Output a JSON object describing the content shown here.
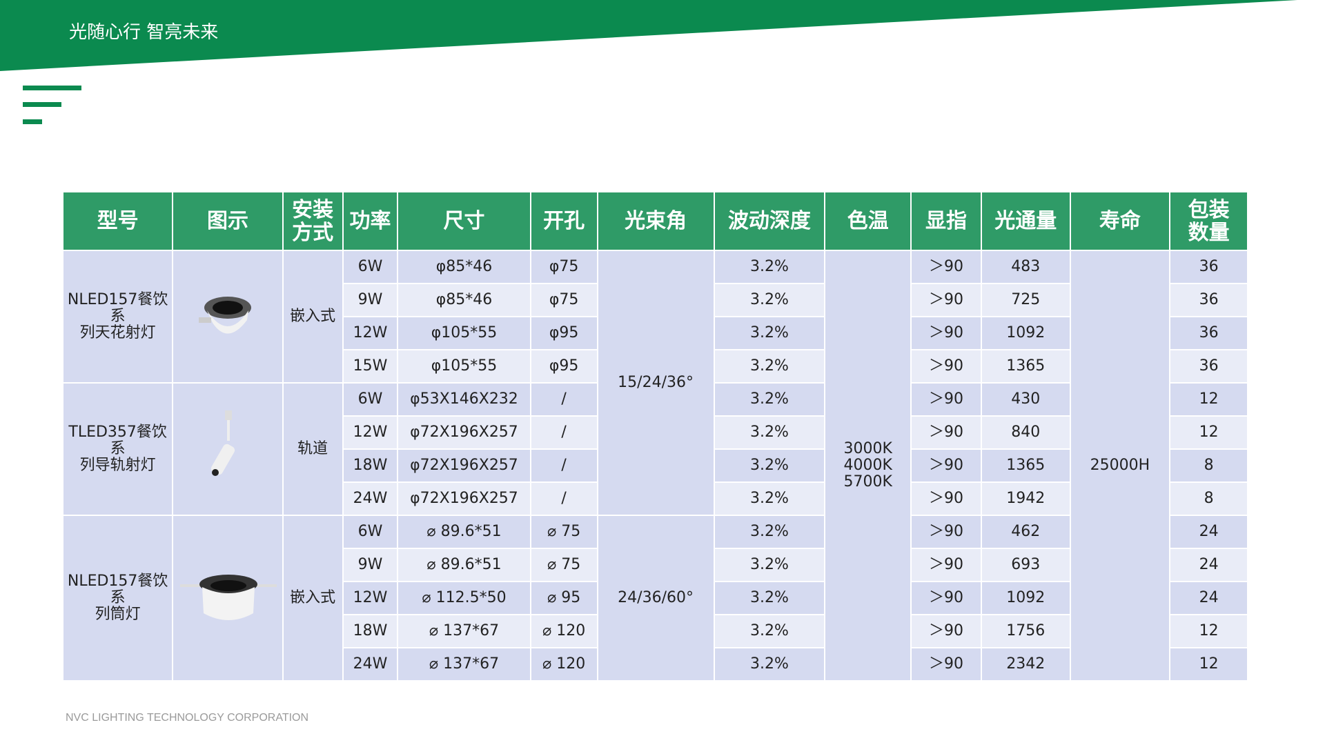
{
  "header": {
    "title": "光随心行  智亮未来"
  },
  "table": {
    "headers": [
      "型号",
      "图示",
      "安装\n方式",
      "功率",
      "尺寸",
      "开孔",
      "光束角",
      "波动深度",
      "色温",
      "显指",
      "光通量",
      "寿命",
      "包装\n数量"
    ],
    "beam_angles": [
      "15/24/36°",
      "24/36/60°"
    ],
    "color_temp": "3000K\n4000K\n5700K",
    "lifetime": "25000H",
    "groups": [
      {
        "model": "NLED157餐饮系\n列天花射灯",
        "install": "嵌入式",
        "rows": [
          [
            "6W",
            "φ85*46",
            "φ75",
            "3.2%",
            "＞90",
            "483",
            "36"
          ],
          [
            "9W",
            "φ85*46",
            "φ75",
            "3.2%",
            "＞90",
            "725",
            "36"
          ],
          [
            "12W",
            "φ105*55",
            "φ95",
            "3.2%",
            "＞90",
            "1092",
            "36"
          ],
          [
            "15W",
            "φ105*55",
            "φ95",
            "3.2%",
            "＞90",
            "1365",
            "36"
          ]
        ]
      },
      {
        "model": "TLED357餐饮系\n列导轨射灯",
        "install": "轨道",
        "rows": [
          [
            "6W",
            "φ53X146X232",
            "/",
            "3.2%",
            "＞90",
            "430",
            "12"
          ],
          [
            "12W",
            "φ72X196X257",
            "/",
            "3.2%",
            "＞90",
            "840",
            "12"
          ],
          [
            "18W",
            "φ72X196X257",
            "/",
            "3.2%",
            "＞90",
            "1365",
            "8"
          ],
          [
            "24W",
            "φ72X196X257",
            "/",
            "3.2%",
            "＞90",
            "1942",
            "8"
          ]
        ]
      },
      {
        "model": "NLED157餐饮系\n列筒灯",
        "install": "嵌入式",
        "rows": [
          [
            "6W",
            "⌀ 89.6*51",
            "⌀ 75",
            "3.2%",
            "＞90",
            "462",
            "24"
          ],
          [
            "9W",
            "⌀ 89.6*51",
            "⌀ 75",
            "3.2%",
            "＞90",
            "693",
            "24"
          ],
          [
            "12W",
            "⌀ 112.5*50",
            "⌀ 95",
            "3.2%",
            "＞90",
            "1092",
            "24"
          ],
          [
            "18W",
            "⌀ 137*67",
            "⌀ 120",
            "3.2%",
            "＞90",
            "1756",
            "12"
          ],
          [
            "24W",
            "⌀ 137*67",
            "⌀ 120",
            "3.2%",
            "＞90",
            "2342",
            "12"
          ]
        ]
      }
    ]
  },
  "footer": "NVC LIGHTING TECHNOLOGY CORPORATION"
}
